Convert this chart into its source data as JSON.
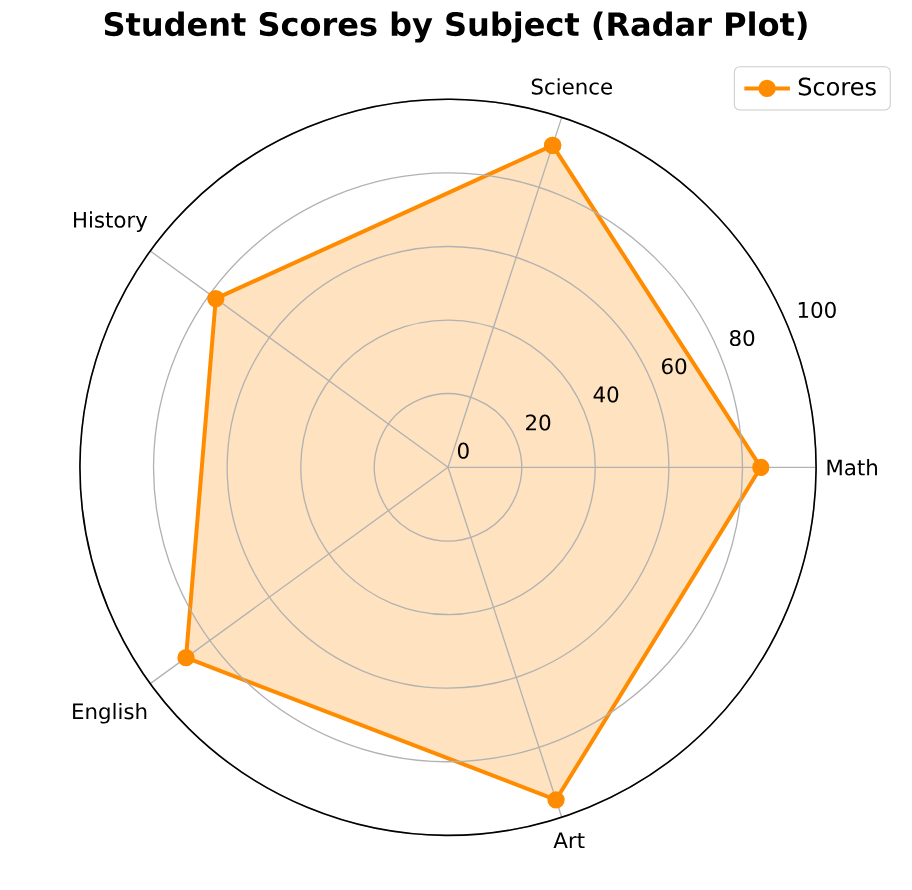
{
  "chart_data": {
    "type": "radar",
    "title": "Student Scores by Subject (Radar Plot)",
    "categories": [
      "Science",
      "Math",
      "Art",
      "English",
      "History"
    ],
    "series": [
      {
        "name": "Scores",
        "color": "#ff8c00",
        "values": [
          92,
          85,
          95,
          88,
          78
        ]
      }
    ],
    "ylim": [
      0,
      100
    ],
    "yticks": [
      0,
      20,
      40,
      60,
      80,
      100
    ],
    "grid": true,
    "legend": "top right",
    "marker": "circle",
    "line_style": "solid"
  }
}
